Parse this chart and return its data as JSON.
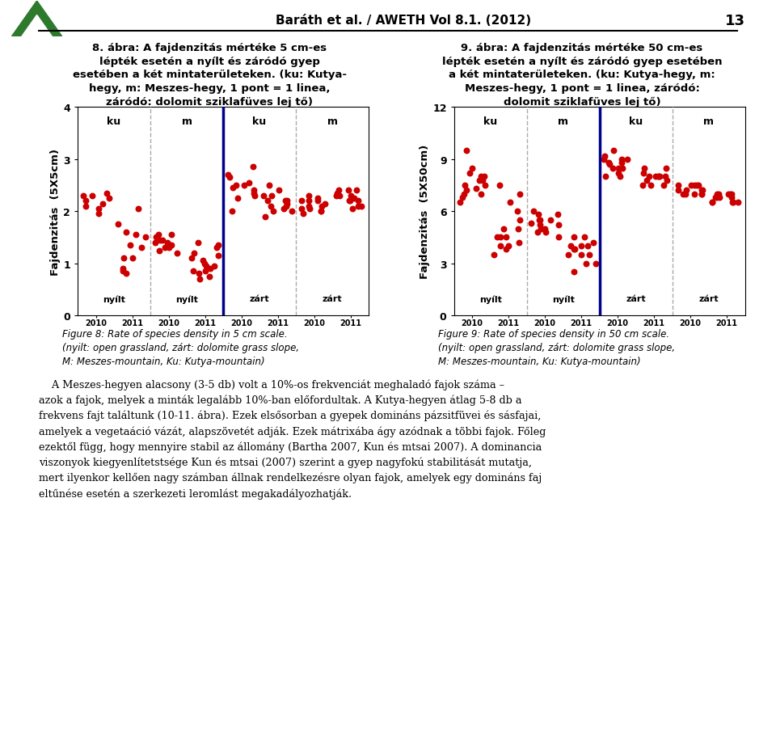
{
  "ylabel_left": "Fajdenzitás  (5X5cm)",
  "ylabel_right": "Fajdenzitás  (5X50cm)",
  "ylim_left": [
    0,
    4
  ],
  "ylim_right": [
    0,
    12
  ],
  "yticks_left": [
    0,
    1,
    2,
    3,
    4
  ],
  "yticks_right": [
    0,
    3,
    6,
    9,
    12
  ],
  "section_labels": [
    "ku",
    "m",
    "ku",
    "m"
  ],
  "group_label_nyilt": "nyílt",
  "group_label_zart": "zárt",
  "dot_color": "#cc0000",
  "dot_size": 22,
  "blue_line_color": "#00008B",
  "dashed_line_color": "#aaaaaa",
  "left_data": {
    "nyilt_ku_2010": [
      2.3,
      2.25,
      2.15,
      2.05,
      2.2,
      2.1,
      2.3,
      2.35,
      1.95
    ],
    "nyilt_ku_2011": [
      2.05,
      1.75,
      1.5,
      1.3,
      1.1,
      0.9,
      0.85,
      0.8,
      1.1,
      1.35,
      1.6,
      1.55
    ],
    "nyilt_m_2010": [
      1.55,
      1.45,
      1.3,
      1.4,
      1.2,
      1.45,
      1.3,
      1.55,
      1.4,
      1.35,
      1.25,
      1.5
    ],
    "nyilt_m_2011": [
      1.35,
      1.15,
      0.95,
      0.8,
      0.85,
      0.9,
      1.05,
      1.2,
      1.0,
      1.1,
      1.3,
      1.4,
      0.75,
      0.7,
      0.85,
      0.95
    ],
    "zart_ku_2010": [
      2.0,
      2.3,
      2.55,
      2.4,
      2.85,
      2.5,
      2.35,
      2.65,
      2.45,
      2.7,
      2.5,
      2.25
    ],
    "zart_ku_2011": [
      2.1,
      2.2,
      2.0,
      2.3,
      2.4,
      2.2,
      2.1,
      1.9,
      2.0,
      2.2,
      2.5,
      2.3,
      2.15,
      2.05
    ],
    "zart_m_2010": [
      2.0,
      2.1,
      2.2,
      2.05,
      1.95,
      2.15,
      2.2,
      2.3,
      2.05,
      2.2,
      2.1,
      2.0,
      2.25
    ],
    "zart_m_2011": [
      2.1,
      2.2,
      2.3,
      2.4,
      2.2,
      2.05,
      2.1,
      2.2,
      2.3,
      2.4,
      2.3,
      2.4,
      2.35,
      2.25
    ]
  },
  "right_data": {
    "nyilt_ku_2010": [
      9.5,
      8.5,
      8.0,
      7.5,
      8.2,
      7.8,
      7.0,
      6.5,
      7.2,
      6.8,
      7.5,
      8.0,
      7.3,
      7.8,
      7.0
    ],
    "nyilt_ku_2011": [
      7.5,
      7.0,
      6.5,
      6.0,
      5.5,
      5.0,
      4.5,
      4.0,
      4.5,
      5.0,
      4.2,
      3.5,
      4.0,
      3.8,
      4.5
    ],
    "nyilt_m_2010": [
      6.0,
      5.5,
      5.8,
      5.2,
      4.8,
      5.5,
      5.0,
      4.5,
      5.2,
      4.8,
      5.0,
      5.5,
      5.8,
      5.3
    ],
    "nyilt_m_2011": [
      4.5,
      4.0,
      3.5,
      3.8,
      4.2,
      4.5,
      4.0,
      3.5,
      3.0,
      2.5,
      3.0,
      3.5,
      3.8,
      4.0
    ],
    "zart_ku_2010": [
      9.5,
      9.0,
      8.8,
      8.5,
      8.0,
      9.0,
      8.5,
      8.8,
      9.2,
      8.0,
      8.5,
      9.0,
      8.2,
      8.7
    ],
    "zart_ku_2011": [
      8.0,
      8.5,
      8.0,
      7.5,
      7.8,
      8.2,
      8.0,
      7.5,
      8.5,
      8.0,
      7.8,
      8.0,
      7.5,
      8.0
    ],
    "zart_m_2010": [
      7.5,
      7.0,
      7.5,
      7.0,
      7.2,
      7.5,
      7.0,
      7.2,
      7.5,
      7.0,
      7.2,
      7.5,
      7.0,
      7.2
    ],
    "zart_m_2011": [
      7.0,
      6.5,
      7.0,
      6.5,
      6.8,
      7.0,
      6.5,
      6.8,
      7.0,
      6.5,
      6.8,
      7.0,
      6.5,
      6.8
    ]
  },
  "title_left": "8. ábra: A fajdenzitás mértéke 5 cm-es\nlépték esetén a nyílt és záródó gyep\nesetében a két mintaterületeken. (ku: Kutya-\nhegy, m: Meszes-hegy, 1 pont = 1 linea,\nzáródó: dolomit sziklafüves lej tő)",
  "title_right": "9. ábra: A fajdenzitás mértéke 50 cm-es\nlépték esetén a nyílt és záródó gyep esetében\na két mintaterületeken. (ku: Kutya-hegy, m:\nMeszes-hegy, 1 pont = 1 linea, záródó:\ndolomit sziklafüves lej tő)",
  "caption_left": "Figure 8: Rate of species density in 5 cm scale.\n(nyilt: open grassland, zárt: dolomite grass slope,\nM: Meszes-mountain, Ku: Kutya-mountain)",
  "caption_right": "Figure 9: Rate of species density in 50 cm scale.\n(nyilt: open grassland, zárt: dolomite grass slope,\nM: Meszes-mountain, Ku: Kutya-mountain)",
  "header": "Baráth et al. / AWETH Vol 8.1. (2012)",
  "page_number": "13",
  "body_text_lines": [
    "    A Meszes-hegyen alacsony (3-5 db) volt a 10%-os frekvenciát meghaladó fajok száma –",
    "azok a fajok, melyek a minták legalább 10%-ban előfordultak. A Kutya-hegyen átlag 5-8 db a",
    "frekvens fajt találtunk (10-11. ábra). Ezek elsősorban a gyepek domináns pázsitfüvei és sásfajai,",
    "amelyek a vegetaáció vázát, alapszövetét adják. Ezek mátrixába ágy azódnak a többi fajok. Főleg",
    "ezektől függ, hogy mennyire stabil az állomány (Bartha 2007, Kun és mtsai 2007). A dominancia",
    "viszonyok kiegyenlítetstsége Kun és mtsai (2007) szerint a gyep nagyfokú stabilitását mutatja,",
    "mert ilyenkor kellően nagy számban állnak rendelkezésre olyan fajok, amelyek egy domináns faj",
    "eltűnése esetén a szerkezeti leromlást megakadályozhatják."
  ]
}
